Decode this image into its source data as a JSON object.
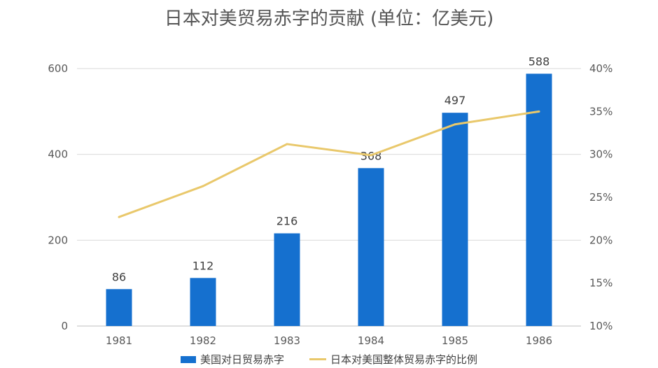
{
  "chart_data": {
    "type": "bar",
    "title": "日本对美贸易赤字的贡献 (单位：亿美元)",
    "categories": [
      "1981",
      "1982",
      "1983",
      "1984",
      "1985",
      "1986"
    ],
    "series": [
      {
        "name": "美国对日贸易赤字",
        "type": "bar",
        "axis": "left",
        "values": [
          86,
          112,
          216,
          368,
          497,
          588
        ],
        "data_labels": [
          "86",
          "112",
          "216",
          "368",
          "497",
          "588"
        ],
        "color": "#1570cf"
      },
      {
        "name": "日本对美国整体贸易赤字的比例",
        "type": "line",
        "axis": "right",
        "values": [
          0.227,
          0.263,
          0.312,
          0.299,
          0.335,
          0.35
        ],
        "color": "#e9c86b"
      }
    ],
    "ylim_left": [
      0,
      600
    ],
    "yticks_left": [
      "0",
      "200",
      "400",
      "600"
    ],
    "ylim_right": [
      0.1,
      0.4
    ],
    "yticks_right": [
      "10%",
      "15%",
      "20%",
      "25%",
      "30%",
      "35%",
      "40%"
    ],
    "grid": true,
    "legend": "bottom"
  }
}
